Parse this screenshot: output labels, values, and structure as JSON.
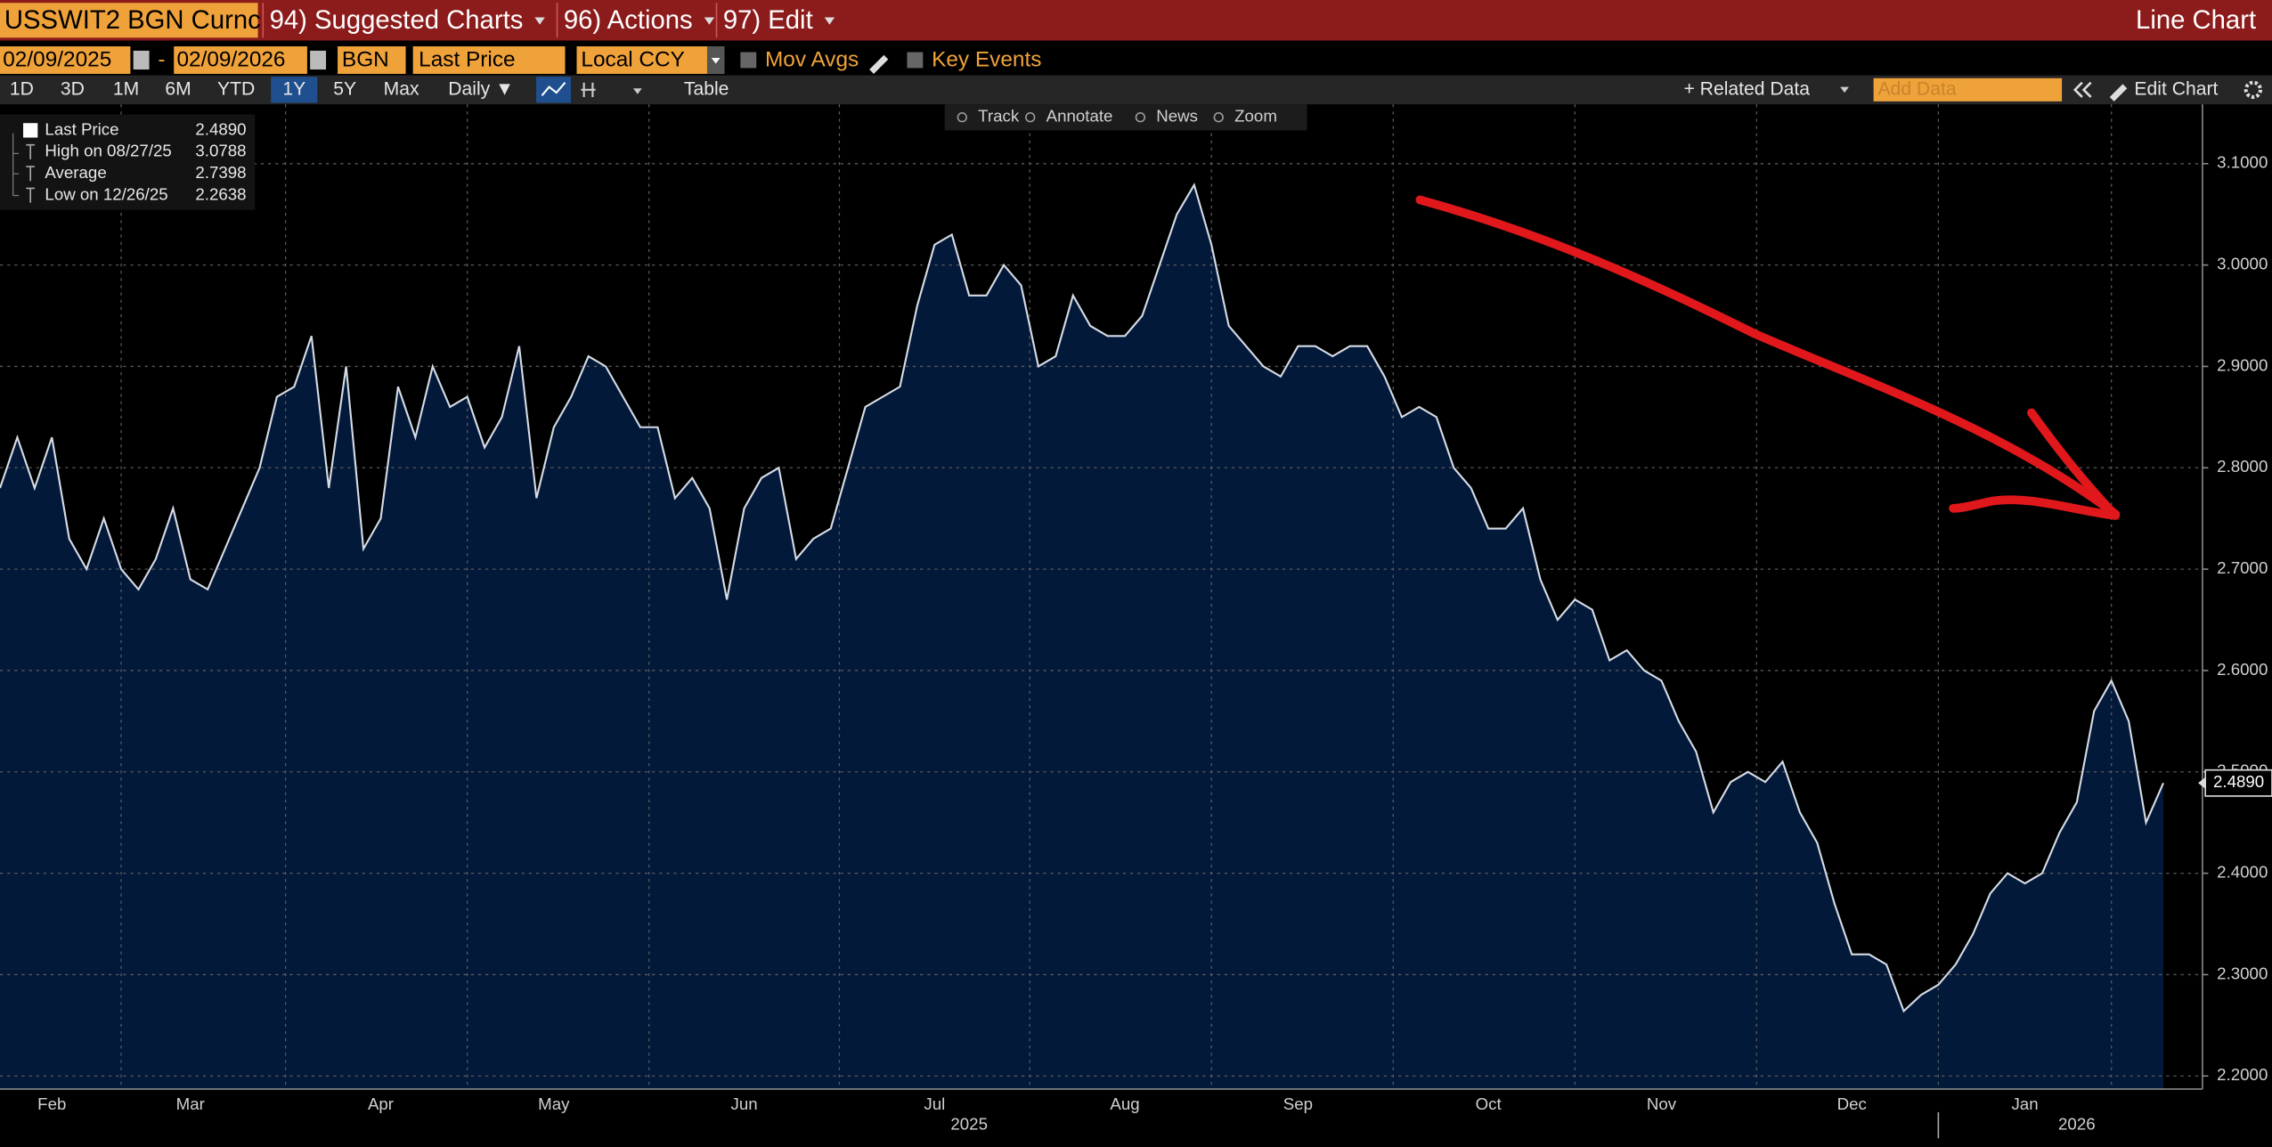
{
  "header": {
    "security": "USSWIT2 BGN Curnc",
    "menus": [
      "94) Suggested Charts",
      "96) Actions",
      "97) Edit"
    ],
    "chart_kind": "Line Chart"
  },
  "settings": {
    "start": "02/09/2025",
    "separator": "-",
    "end": "02/09/2026",
    "source": "BGN",
    "field": "Last Price",
    "currency": "Local CCY",
    "options": [
      "Mov Avgs",
      "Key Events"
    ]
  },
  "toolbar": {
    "periods": [
      "1D",
      "3D",
      "1M",
      "6M",
      "YTD",
      "1Y",
      "5Y",
      "Max",
      "Daily ▼"
    ],
    "active": "1Y",
    "table": "Table",
    "related": "+ Related Data",
    "add_data": "Add Data",
    "edit": "Edit Chart"
  },
  "chart_tools": [
    "Track",
    "Annotate",
    "News",
    "Zoom"
  ],
  "chart_data": {
    "type": "area",
    "color": "#d6dce6",
    "fill": "#03193a",
    "grid": true,
    "legend": [
      {
        "name": "Last Price",
        "value": 2.489,
        "label": "2.4890"
      },
      {
        "name": "High on 08/27/25",
        "value": 3.0788,
        "label": "3.0788"
      },
      {
        "name": "Average",
        "value": 2.7398,
        "label": "2.7398"
      },
      {
        "name": "Low on 12/26/25",
        "value": 2.2638,
        "label": "2.2638"
      }
    ],
    "ylim": [
      2.1871,
      3.1586
    ],
    "yticks": [
      {
        "value": 2.2,
        "label": "2.2000"
      },
      {
        "value": 2.3,
        "label": "2.3000"
      },
      {
        "value": 2.4,
        "label": "2.4000"
      },
      {
        "value": 2.5,
        "label": "2.5000"
      },
      {
        "value": 2.6,
        "label": "2.6000"
      },
      {
        "value": 2.7,
        "label": "2.7000"
      },
      {
        "value": 2.8,
        "label": "2.8000"
      },
      {
        "value": 2.9,
        "label": "2.9000"
      },
      {
        "value": 3.0,
        "label": "3.0000"
      },
      {
        "value": 3.1,
        "label": "3.1000"
      }
    ],
    "categories": [
      null,
      null,
      null,
      "Feb",
      null,
      null,
      null,
      null,
      null,
      null,
      null,
      "Mar",
      null,
      null,
      null,
      null,
      null,
      null,
      null,
      null,
      null,
      null,
      "Apr",
      null,
      null,
      null,
      null,
      null,
      null,
      null,
      null,
      null,
      "May",
      null,
      null,
      null,
      null,
      null,
      null,
      null,
      null,
      null,
      null,
      "Jun",
      null,
      null,
      null,
      null,
      null,
      null,
      null,
      null,
      null,
      null,
      "Jul",
      null,
      null,
      null,
      null,
      null,
      null,
      null,
      null,
      null,
      null,
      "Aug",
      null,
      null,
      null,
      null,
      null,
      null,
      null,
      null,
      null,
      "Sep",
      null,
      null,
      null,
      null,
      null,
      null,
      null,
      null,
      null,
      null,
      "Oct",
      null,
      null,
      null,
      null,
      null,
      null,
      null,
      null,
      null,
      "Nov",
      null,
      null,
      null,
      null,
      null,
      null,
      null,
      null,
      null,
      null,
      "Dec",
      null,
      null,
      null,
      null,
      null,
      null,
      null,
      null,
      null,
      "Jan",
      null,
      null,
      null,
      null,
      null,
      null,
      null,
      null
    ],
    "years": [
      null,
      null,
      null,
      null,
      null,
      null,
      null,
      null,
      null,
      null,
      null,
      null,
      null,
      null,
      null,
      null,
      null,
      null,
      null,
      null,
      null,
      null,
      null,
      null,
      null,
      null,
      null,
      null,
      null,
      null,
      null,
      null,
      null,
      null,
      null,
      null,
      null,
      null,
      null,
      null,
      null,
      null,
      null,
      null,
      null,
      null,
      null,
      null,
      null,
      null,
      null,
      null,
      null,
      null,
      null,
      null,
      "2025",
      null,
      null,
      null,
      null,
      null,
      null,
      null,
      null,
      null,
      null,
      null,
      null,
      null,
      null,
      null,
      null,
      null,
      null,
      null,
      null,
      null,
      null,
      null,
      null,
      null,
      null,
      null,
      null,
      null,
      null,
      null,
      null,
      null,
      null,
      null,
      null,
      null,
      null,
      null,
      null,
      null,
      null,
      null,
      null,
      null,
      null,
      null,
      null,
      null,
      null,
      null,
      null,
      null,
      null,
      null,
      null,
      null,
      null,
      null,
      null,
      null,
      null,
      null,
      "2026",
      null,
      null,
      null,
      null,
      null
    ],
    "values": [
      2.78,
      2.83,
      2.78,
      2.83,
      2.73,
      2.7,
      2.75,
      2.7,
      2.68,
      2.71,
      2.76,
      2.69,
      2.68,
      2.72,
      2.76,
      2.8,
      2.87,
      2.88,
      2.93,
      2.78,
      2.9,
      2.72,
      2.75,
      2.88,
      2.83,
      2.9,
      2.86,
      2.87,
      2.82,
      2.85,
      2.92,
      2.77,
      2.84,
      2.87,
      2.91,
      2.9,
      2.87,
      2.84,
      2.84,
      2.77,
      2.79,
      2.76,
      2.67,
      2.76,
      2.79,
      2.8,
      2.71,
      2.73,
      2.74,
      2.8,
      2.86,
      2.87,
      2.88,
      2.96,
      3.02,
      3.03,
      2.97,
      2.97,
      3.0,
      2.98,
      2.9,
      2.91,
      2.97,
      2.94,
      2.93,
      2.93,
      2.95,
      3.0,
      3.05,
      3.079,
      3.02,
      2.94,
      2.92,
      2.9,
      2.89,
      2.92,
      2.92,
      2.91,
      2.92,
      2.92,
      2.89,
      2.85,
      2.86,
      2.85,
      2.8,
      2.78,
      2.74,
      2.74,
      2.76,
      2.69,
      2.65,
      2.67,
      2.66,
      2.61,
      2.62,
      2.6,
      2.59,
      2.55,
      2.52,
      2.46,
      2.49,
      2.5,
      2.49,
      2.51,
      2.46,
      2.43,
      2.37,
      2.32,
      2.32,
      2.31,
      2.264,
      2.28,
      2.29,
      2.31,
      2.34,
      2.38,
      2.4,
      2.39,
      2.4,
      2.44,
      2.47,
      2.56,
      2.59,
      2.55,
      2.45,
      2.489
    ]
  }
}
